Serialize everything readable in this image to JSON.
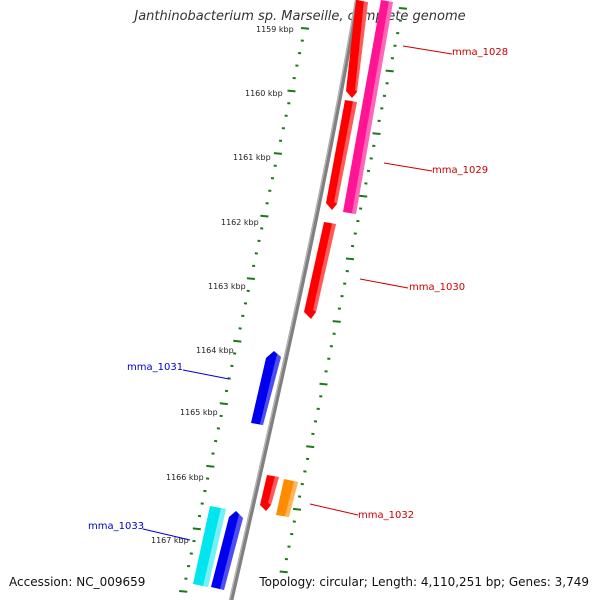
{
  "title": "Janthinobacterium sp. Marseille, complete genome",
  "accession_text": "Accession: NC_009659",
  "summary_text": "Topology: circular; Length: 4,110,251 bp; Genes: 3,749",
  "ticks": [
    "1159 kbp",
    "1160 kbp",
    "1161 kbp",
    "1162 kbp",
    "1163 kbp",
    "1164 kbp",
    "1165 kbp",
    "1166 kbp",
    "1167 kbp"
  ],
  "genes": [
    {
      "label": "mma_1028",
      "color": "#ff0000"
    },
    {
      "label": "mma_1029",
      "color": "#ff1493"
    },
    {
      "label": "mma_1030",
      "color": "#ff0000"
    },
    {
      "label": "mma_1031",
      "color": "#0000ee"
    },
    {
      "label": "mma_1032",
      "color": "#ff8c00"
    },
    {
      "label": "mma_1033",
      "color": "#00e5ee"
    }
  ],
  "colors": {
    "backbone": "#808080",
    "tick_marks": "#1a7a1a",
    "forward_label": "#cc0000",
    "reverse_label": "#0000cc",
    "red": "#ff0000",
    "magenta": "#ff1493",
    "blue": "#0000ee",
    "orange": "#ff8c00",
    "cyan": "#00e5ee"
  }
}
